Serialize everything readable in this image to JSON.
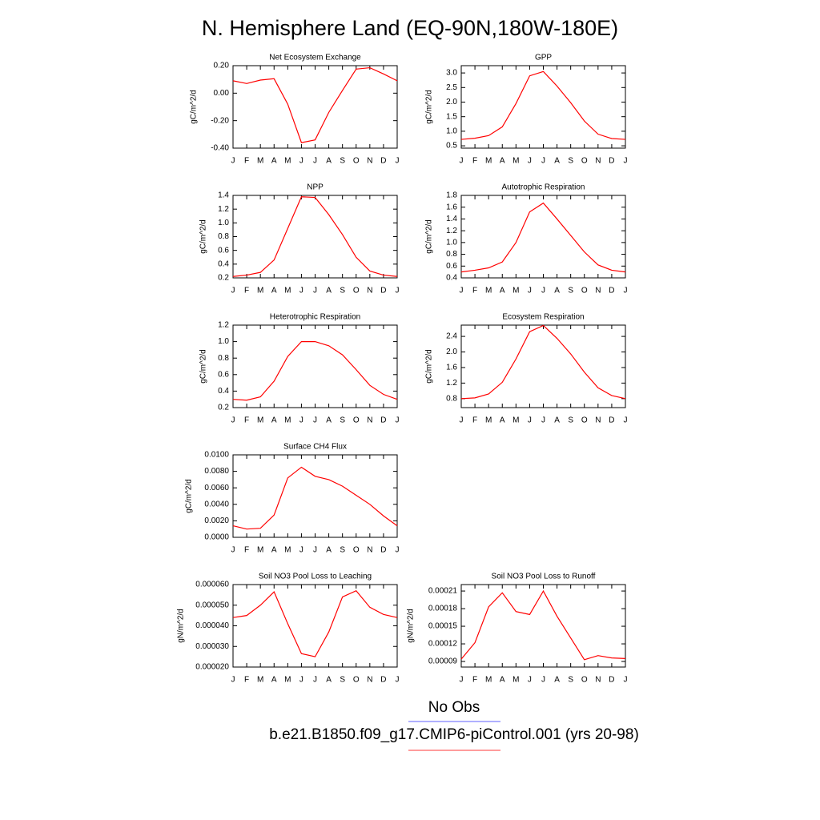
{
  "title": "N. Hemisphere Land (EQ-90N,180W-180E)",
  "legend": [
    {
      "name": "No Obs",
      "color": "#8080ff"
    },
    {
      "name": "b.e21.B1850.f09_g17.CMIP6-piControl.001 (yrs 20-98)",
      "color": "#ff6060"
    }
  ],
  "chart_data": [
    {
      "type": "line",
      "title": "Net Ecosystem Exchange",
      "y_label": "gC/m^2/d",
      "categories": [
        "J",
        "F",
        "M",
        "A",
        "M",
        "J",
        "J",
        "A",
        "S",
        "O",
        "N",
        "D",
        "J"
      ],
      "series": [
        {
          "color": "#ff0000",
          "values": [
            0.09,
            0.07,
            0.095,
            0.105,
            -0.08,
            -0.36,
            -0.34,
            -0.14,
            0.02,
            0.175,
            0.185,
            0.14,
            0.09
          ]
        }
      ],
      "ylim": [
        -0.4,
        0.2
      ],
      "yticks": [
        {
          "value": -0.4,
          "label": "-0.40"
        },
        {
          "value": -0.2,
          "label": "-0.20"
        },
        {
          "value": 0,
          "label": "0.00"
        },
        {
          "value": 0.2,
          "label": "0.20"
        }
      ]
    },
    {
      "type": "line",
      "title": "GPP",
      "y_label": "gC/m^2/d",
      "categories": [
        "J",
        "F",
        "M",
        "A",
        "M",
        "J",
        "J",
        "A",
        "S",
        "O",
        "N",
        "D",
        "J"
      ],
      "series": [
        {
          "color": "#ff0000",
          "values": [
            0.72,
            0.76,
            0.85,
            1.15,
            1.95,
            2.9,
            3.05,
            2.55,
            1.98,
            1.35,
            0.9,
            0.75,
            0.72
          ]
        }
      ],
      "ylim": [
        0.42,
        3.25
      ],
      "yticks": [
        0.5,
        {
          "value": 1,
          "label": "1.0"
        },
        1.5,
        {
          "value": 2,
          "label": "2.0"
        },
        2.5,
        {
          "value": 3,
          "label": "3.0"
        }
      ]
    },
    {
      "type": "line",
      "title": "NPP",
      "y_label": "gC/m^2/d",
      "categories": [
        "J",
        "F",
        "M",
        "A",
        "M",
        "J",
        "J",
        "A",
        "S",
        "O",
        "N",
        "D",
        "J"
      ],
      "series": [
        {
          "color": "#ff0000",
          "values": [
            0.22,
            0.24,
            0.28,
            0.46,
            0.92,
            1.38,
            1.37,
            1.12,
            0.83,
            0.5,
            0.3,
            0.24,
            0.22
          ]
        }
      ],
      "ylim": [
        0.2,
        1.4
      ],
      "yticks": [
        0.2,
        0.4,
        0.6,
        0.8,
        {
          "value": 1,
          "label": "1.0"
        },
        1.2,
        1.4
      ]
    },
    {
      "type": "line",
      "title": "Autotrophic Respiration",
      "y_label": "gC/m^2/d",
      "categories": [
        "J",
        "F",
        "M",
        "A",
        "M",
        "J",
        "J",
        "A",
        "S",
        "O",
        "N",
        "D",
        "J"
      ],
      "series": [
        {
          "color": "#ff0000",
          "values": [
            0.5,
            0.53,
            0.57,
            0.67,
            1.0,
            1.52,
            1.67,
            1.4,
            1.12,
            0.84,
            0.62,
            0.53,
            0.5
          ]
        }
      ],
      "ylim": [
        0.4,
        1.8
      ],
      "yticks": [
        0.4,
        0.6,
        0.8,
        {
          "value": 1,
          "label": "1.0"
        },
        1.2,
        1.4,
        1.6,
        1.8
      ]
    },
    {
      "type": "line",
      "title": "Heterotrophic Respiration",
      "y_label": "gC/m^2/d",
      "categories": [
        "J",
        "F",
        "M",
        "A",
        "M",
        "J",
        "J",
        "A",
        "S",
        "O",
        "N",
        "D",
        "J"
      ],
      "series": [
        {
          "color": "#ff0000",
          "values": [
            0.3,
            0.29,
            0.33,
            0.52,
            0.82,
            1.0,
            1.0,
            0.95,
            0.84,
            0.66,
            0.47,
            0.36,
            0.3
          ]
        }
      ],
      "ylim": [
        0.2,
        1.2
      ],
      "yticks": [
        0.2,
        0.4,
        0.6,
        0.8,
        {
          "value": 1,
          "label": "1.0"
        },
        1.2
      ]
    },
    {
      "type": "line",
      "title": "Ecosystem Respiration",
      "y_label": "gC/m^2/d",
      "categories": [
        "J",
        "F",
        "M",
        "A",
        "M",
        "J",
        "J",
        "A",
        "S",
        "O",
        "N",
        "D",
        "J"
      ],
      "series": [
        {
          "color": "#ff0000",
          "values": [
            0.8,
            0.82,
            0.92,
            1.22,
            1.82,
            2.52,
            2.68,
            2.35,
            1.95,
            1.48,
            1.08,
            0.88,
            0.8
          ]
        }
      ],
      "ylim": [
        0.57,
        2.69
      ],
      "yticks": [
        0.8,
        1.2,
        1.6,
        {
          "value": 2,
          "label": "2.0"
        },
        2.4
      ]
    },
    {
      "type": "line",
      "title": "Surface CH4 Flux",
      "y_label": "gC/m^2/d",
      "categories": [
        "J",
        "F",
        "M",
        "A",
        "M",
        "J",
        "J",
        "A",
        "S",
        "O",
        "N",
        "D",
        "J"
      ],
      "series": [
        {
          "color": "#ff0000",
          "values": [
            0.0014,
            0.001,
            0.0011,
            0.0027,
            0.0072,
            0.0085,
            0.0074,
            0.007,
            0.0062,
            0.0051,
            0.004,
            0.0026,
            0.0014
          ]
        }
      ],
      "ylim": [
        0,
        0.01
      ],
      "yticks": [
        {
          "value": 0,
          "label": "0.0000"
        },
        {
          "value": 0.002,
          "label": "0.0020"
        },
        {
          "value": 0.004,
          "label": "0.0040"
        },
        {
          "value": 0.006,
          "label": "0.0060"
        },
        {
          "value": 0.008,
          "label": "0.0080"
        },
        {
          "value": 0.01,
          "label": "0.0100"
        }
      ]
    },
    {
      "type": "line",
      "title": "Soil NO3 Pool Loss to Leaching",
      "y_label": "gN/m^2/d",
      "categories": [
        "J",
        "F",
        "M",
        "A",
        "M",
        "J",
        "J",
        "A",
        "S",
        "O",
        "N",
        "D",
        "J"
      ],
      "series": [
        {
          "color": "#ff0000",
          "values": [
            4.4e-05,
            4.5e-05,
            5e-05,
            5.65e-05,
            4.1e-05,
            2.65e-05,
            2.5e-05,
            3.7e-05,
            5.4e-05,
            5.7e-05,
            4.9e-05,
            4.55e-05,
            4.4e-05
          ]
        }
      ],
      "ylim": [
        2e-05,
        6e-05
      ],
      "yticks": [
        {
          "value": 2e-05,
          "label": "0.000020"
        },
        {
          "value": 3e-05,
          "label": "0.000030"
        },
        {
          "value": 4e-05,
          "label": "0.000040"
        },
        {
          "value": 5e-05,
          "label": "0.000050"
        },
        {
          "value": 6e-05,
          "label": "0.000060"
        }
      ]
    },
    {
      "type": "line",
      "title": "Soil NO3 Pool Loss to Runoff",
      "y_label": "gN/m^2/d",
      "categories": [
        "J",
        "F",
        "M",
        "A",
        "M",
        "J",
        "J",
        "A",
        "S",
        "O",
        "N",
        "D",
        "J"
      ],
      "series": [
        {
          "color": "#ff0000",
          "values": [
            9.4e-05,
            0.000122,
            0.000183,
            0.000207,
            0.000175,
            0.00017,
            0.00021,
            0.000167,
            0.00013,
            9.3e-05,
            0.0001,
            9.6e-05,
            9.5e-05
          ]
        }
      ],
      "ylim": [
        8.05e-05,
        0.000221
      ],
      "yticks": [
        9e-05,
        0.00012,
        0.00015,
        0.00018,
        0.00021
      ]
    }
  ]
}
